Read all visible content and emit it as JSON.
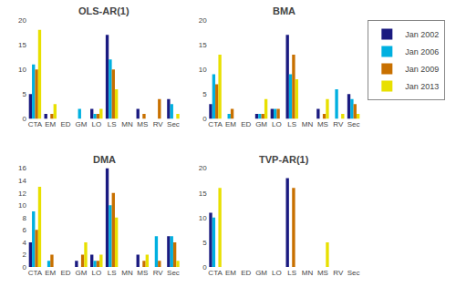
{
  "chart_data": [
    {
      "type": "bar",
      "title": "OLS-AR(1)",
      "categories": [
        "CTA",
        "EM",
        "ED",
        "GM",
        "LO",
        "LS",
        "MN",
        "MS",
        "RV",
        "Sec"
      ],
      "series": [
        {
          "color": "#1a1a80",
          "values": [
            5,
            1,
            0,
            0,
            2,
            17,
            0,
            2,
            0,
            4
          ]
        },
        {
          "color": "#00b0e0",
          "values": [
            11,
            0,
            0,
            2,
            1,
            12,
            0,
            0,
            0,
            3
          ]
        },
        {
          "color": "#c87000",
          "values": [
            10,
            1,
            0,
            0,
            1,
            10,
            0,
            1,
            4,
            0
          ]
        },
        {
          "color": "#e8e000",
          "values": [
            18,
            3,
            0,
            0,
            2,
            6,
            0,
            0,
            0,
            1
          ]
        }
      ],
      "ylim": [
        0,
        20
      ],
      "yticks": [
        0,
        5,
        10,
        15,
        20
      ],
      "grid": false
    },
    {
      "type": "bar",
      "title": "BMA",
      "categories": [
        "CTA",
        "EM",
        "ED",
        "GM",
        "LO",
        "LS",
        "MN",
        "MS",
        "RV",
        "Sec"
      ],
      "series": [
        {
          "name": "Jan 2002",
          "color": "#1a1a80",
          "values": [
            3,
            0,
            0,
            1,
            2,
            17,
            0,
            2,
            0,
            5
          ]
        },
        {
          "name": "Jan 2006",
          "color": "#00b0e0",
          "values": [
            9,
            1,
            0,
            1,
            2,
            9,
            0,
            0,
            6,
            4
          ]
        },
        {
          "name": "Jan 2009",
          "color": "#c87000",
          "values": [
            7,
            2,
            0,
            1,
            2,
            13,
            0,
            1,
            0,
            3
          ]
        },
        {
          "name": "Jan 2013",
          "color": "#e8e000",
          "values": [
            13,
            0,
            0,
            4,
            0,
            8,
            0,
            4,
            1,
            1
          ]
        }
      ],
      "ylim": [
        0,
        20
      ],
      "yticks": [
        0,
        5,
        10,
        15,
        20
      ],
      "grid": false,
      "legend": "upper right"
    },
    {
      "type": "bar",
      "title": "DMA",
      "categories": [
        "CTA",
        "EM",
        "ED",
        "GM",
        "LO",
        "LS",
        "MN",
        "MS",
        "RV",
        "Sec"
      ],
      "series": [
        {
          "color": "#1a1a80",
          "values": [
            4,
            0,
            0,
            1,
            2,
            16,
            0,
            2,
            0,
            5
          ]
        },
        {
          "color": "#00b0e0",
          "values": [
            9,
            1,
            0,
            0,
            1,
            10,
            0,
            0,
            5,
            5
          ]
        },
        {
          "color": "#c87000",
          "values": [
            6,
            2,
            0,
            2,
            1,
            12,
            0,
            1,
            1,
            4
          ]
        },
        {
          "color": "#e8e000",
          "values": [
            13,
            0,
            0,
            4,
            2,
            8,
            0,
            2,
            0,
            1
          ]
        }
      ],
      "ylim": [
        0,
        16
      ],
      "yticks": [
        0,
        2,
        4,
        6,
        8,
        10,
        12,
        14,
        16
      ],
      "grid": false
    },
    {
      "type": "bar",
      "title": "TVP-AR(1)",
      "categories": [
        "CTA",
        "EM",
        "ED",
        "GM",
        "LO",
        "LS",
        "MN",
        "MS",
        "RV",
        "Sec"
      ],
      "series": [
        {
          "color": "#1a1a80",
          "values": [
            11,
            0,
            0,
            0,
            0,
            18,
            0,
            0,
            0,
            0
          ]
        },
        {
          "color": "#00b0e0",
          "values": [
            10,
            0,
            0,
            0,
            0,
            0,
            0,
            0,
            0,
            0
          ]
        },
        {
          "color": "#c87000",
          "values": [
            0,
            0,
            0,
            0,
            0,
            16,
            0,
            0,
            0,
            0
          ]
        },
        {
          "color": "#e8e000",
          "values": [
            16,
            0,
            0,
            0,
            0,
            0,
            0,
            5,
            0,
            0
          ]
        }
      ],
      "ylim": [
        0,
        20
      ],
      "yticks": [
        0,
        5,
        10,
        15,
        20
      ],
      "grid": false
    }
  ]
}
